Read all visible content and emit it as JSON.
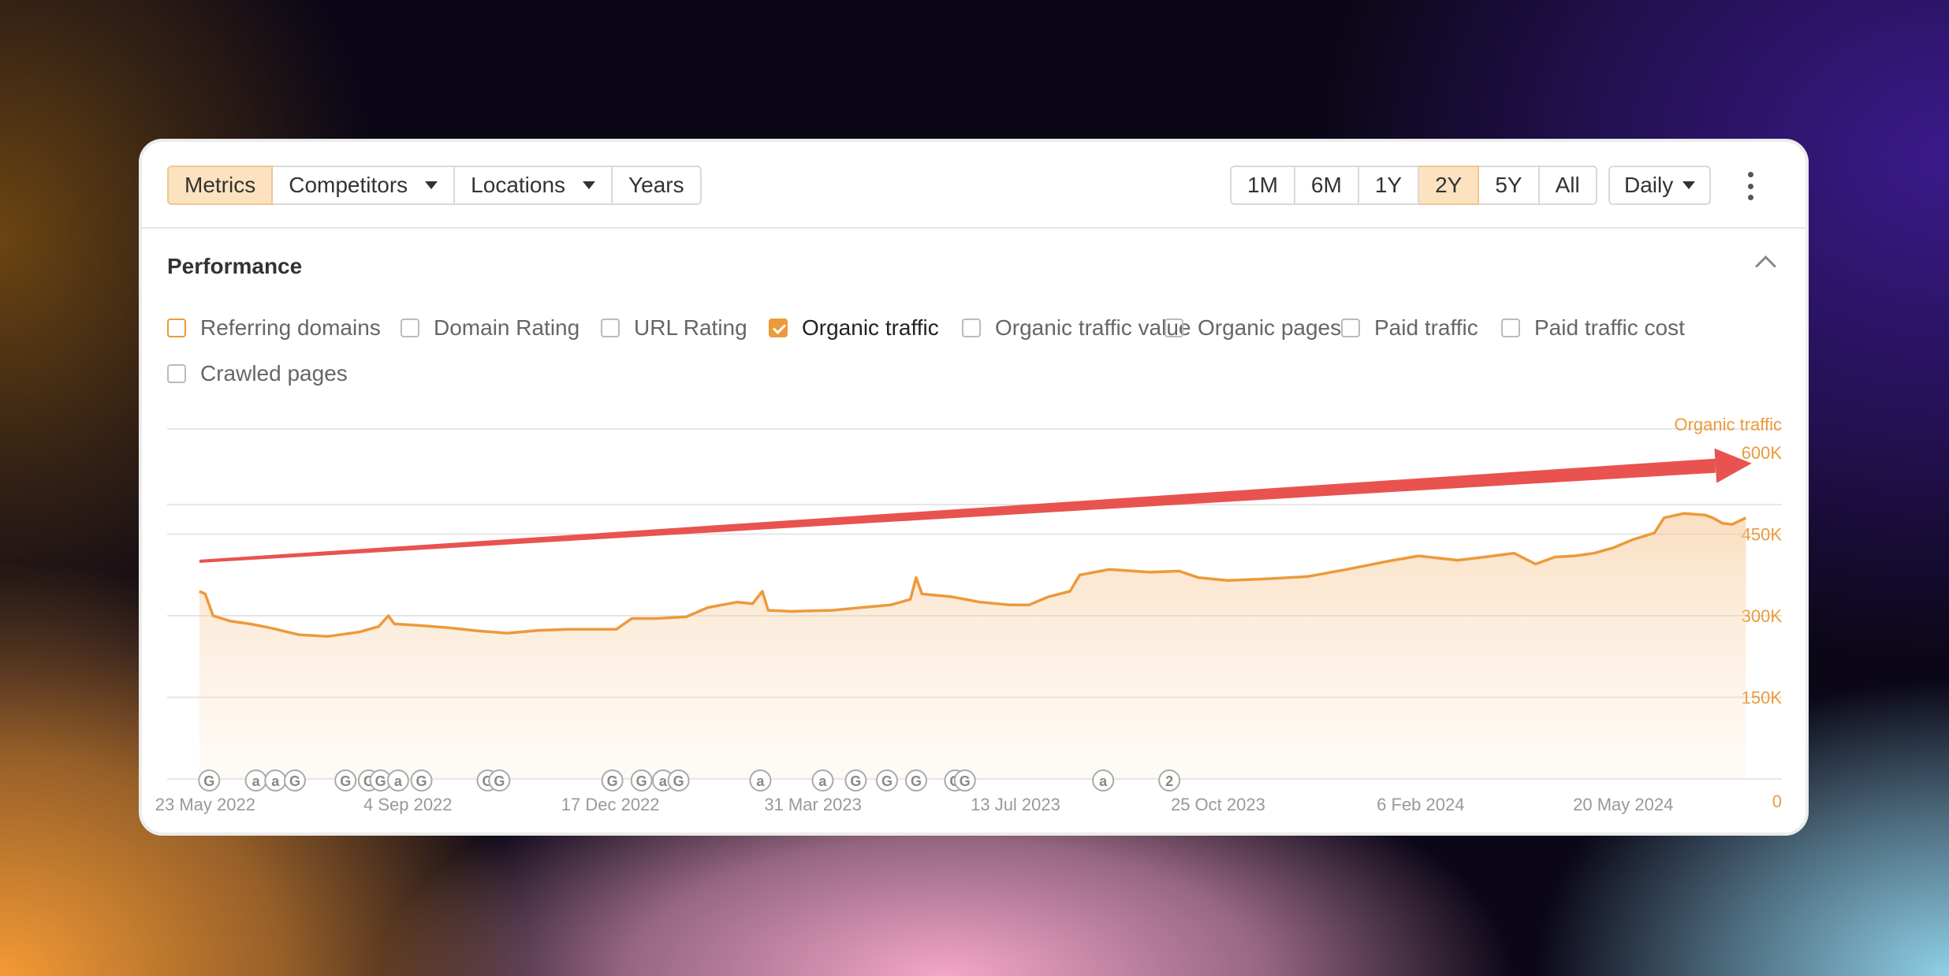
{
  "toolbar": {
    "left_buttons": [
      {
        "label": "Metrics",
        "active": true,
        "dropdown": false
      },
      {
        "label": "Competitors",
        "active": false,
        "dropdown": true
      },
      {
        "label": "Locations",
        "active": false,
        "dropdown": true
      },
      {
        "label": "Years",
        "active": false,
        "dropdown": false
      }
    ],
    "range_buttons": [
      {
        "label": "1M",
        "active": false
      },
      {
        "label": "6M",
        "active": false
      },
      {
        "label": "1Y",
        "active": false
      },
      {
        "label": "2Y",
        "active": true
      },
      {
        "label": "5Y",
        "active": false
      },
      {
        "label": "All",
        "active": false
      }
    ],
    "interval": "Daily",
    "more_icon": "vertical-dots-icon"
  },
  "section": {
    "title": "Performance",
    "collapse_icon": "chevron-up-icon"
  },
  "metrics": [
    {
      "label": "Referring domains",
      "checked": false,
      "accent": true
    },
    {
      "label": "Domain Rating",
      "checked": false
    },
    {
      "label": "URL Rating",
      "checked": false
    },
    {
      "label": "Organic traffic",
      "checked": true
    },
    {
      "label": "Organic traffic value",
      "checked": false
    },
    {
      "label": "Organic pages",
      "checked": false
    },
    {
      "label": "Paid traffic",
      "checked": false
    },
    {
      "label": "Paid traffic cost",
      "checked": false
    },
    {
      "label": "Crawled pages",
      "checked": false
    }
  ],
  "colors": {
    "accent": "#ec9a3b",
    "arrow": "#e8534f",
    "active_button": "#fde2c0"
  },
  "chart_data": {
    "type": "area",
    "series_name": "Organic traffic",
    "y_axis_label": "Organic traffic",
    "ylim": [
      0,
      600000
    ],
    "y_ticks": [
      "600K",
      "450K",
      "300K",
      "150K",
      "0"
    ],
    "x_ticks": [
      "23 May 2022",
      "4 Sep 2022",
      "17 Dec 2022",
      "31 Mar 2023",
      "13 Jul 2023",
      "25 Oct 2023",
      "6 Feb 2024",
      "20 May 2024"
    ],
    "grid": true,
    "points": [
      [
        "2022-05-20",
        345000
      ],
      [
        "2022-05-23",
        340000
      ],
      [
        "2022-05-27",
        300000
      ],
      [
        "2022-06-05",
        290000
      ],
      [
        "2022-06-15",
        285000
      ],
      [
        "2022-06-25",
        278000
      ],
      [
        "2022-07-10",
        265000
      ],
      [
        "2022-07-25",
        262000
      ],
      [
        "2022-08-10",
        270000
      ],
      [
        "2022-08-20",
        280000
      ],
      [
        "2022-08-25",
        300000
      ],
      [
        "2022-08-28",
        285000
      ],
      [
        "2022-09-10",
        282000
      ],
      [
        "2022-09-25",
        278000
      ],
      [
        "2022-10-10",
        272000
      ],
      [
        "2022-10-25",
        268000
      ],
      [
        "2022-11-10",
        273000
      ],
      [
        "2022-11-25",
        275000
      ],
      [
        "2022-12-10",
        275000
      ],
      [
        "2022-12-20",
        275000
      ],
      [
        "2022-12-28",
        295000
      ],
      [
        "2023-01-10",
        295000
      ],
      [
        "2023-01-25",
        298000
      ],
      [
        "2023-02-05",
        315000
      ],
      [
        "2023-02-20",
        325000
      ],
      [
        "2023-02-28",
        322000
      ],
      [
        "2023-03-05",
        345000
      ],
      [
        "2023-03-08",
        310000
      ],
      [
        "2023-03-20",
        308000
      ],
      [
        "2023-04-10",
        310000
      ],
      [
        "2023-04-25",
        315000
      ],
      [
        "2023-05-10",
        320000
      ],
      [
        "2023-05-20",
        330000
      ],
      [
        "2023-05-23",
        370000
      ],
      [
        "2023-05-26",
        340000
      ],
      [
        "2023-06-10",
        335000
      ],
      [
        "2023-06-25",
        325000
      ],
      [
        "2023-07-10",
        320000
      ],
      [
        "2023-07-20",
        320000
      ],
      [
        "2023-07-30",
        335000
      ],
      [
        "2023-08-10",
        345000
      ],
      [
        "2023-08-15",
        375000
      ],
      [
        "2023-08-30",
        385000
      ],
      [
        "2023-09-20",
        380000
      ],
      [
        "2023-10-05",
        382000
      ],
      [
        "2023-10-15",
        370000
      ],
      [
        "2023-10-30",
        365000
      ],
      [
        "2023-11-20",
        368000
      ],
      [
        "2023-12-10",
        372000
      ],
      [
        "2023-12-30",
        385000
      ],
      [
        "2024-01-20",
        400000
      ],
      [
        "2024-02-05",
        410000
      ],
      [
        "2024-02-25",
        402000
      ],
      [
        "2024-03-10",
        408000
      ],
      [
        "2024-03-25",
        415000
      ],
      [
        "2024-04-05",
        395000
      ],
      [
        "2024-04-15",
        408000
      ],
      [
        "2024-04-25",
        410000
      ],
      [
        "2024-05-05",
        415000
      ],
      [
        "2024-05-15",
        425000
      ],
      [
        "2024-05-25",
        440000
      ],
      [
        "2024-06-05",
        452000
      ],
      [
        "2024-06-10",
        480000
      ],
      [
        "2024-06-20",
        488000
      ],
      [
        "2024-07-01",
        485000
      ],
      [
        "2024-07-05",
        480000
      ],
      [
        "2024-07-10",
        470000
      ],
      [
        "2024-07-15",
        468000
      ],
      [
        "2024-07-22",
        480000
      ]
    ],
    "annotation_markers": [
      {
        "date": "2022-05-25",
        "label": "G"
      },
      {
        "date": "2022-06-18",
        "label": "a"
      },
      {
        "date": "2022-06-28",
        "label": "a"
      },
      {
        "date": "2022-07-08",
        "label": "G"
      },
      {
        "date": "2022-08-03",
        "label": "G"
      },
      {
        "date": "2022-08-15",
        "label": "G"
      },
      {
        "date": "2022-08-21",
        "label": "G"
      },
      {
        "date": "2022-08-30",
        "label": "a"
      },
      {
        "date": "2022-09-11",
        "label": "G"
      },
      {
        "date": "2022-10-15",
        "label": "G"
      },
      {
        "date": "2022-10-21",
        "label": "G"
      },
      {
        "date": "2022-12-18",
        "label": "G"
      },
      {
        "date": "2023-01-02",
        "label": "G"
      },
      {
        "date": "2023-01-13",
        "label": "a"
      },
      {
        "date": "2023-01-21",
        "label": "G"
      },
      {
        "date": "2023-03-04",
        "label": "a"
      },
      {
        "date": "2023-04-05",
        "label": "a"
      },
      {
        "date": "2023-04-22",
        "label": "G"
      },
      {
        "date": "2023-05-08",
        "label": "G"
      },
      {
        "date": "2023-05-23",
        "label": "G"
      },
      {
        "date": "2023-06-12",
        "label": "G"
      },
      {
        "date": "2023-06-17",
        "label": "G"
      },
      {
        "date": "2023-08-27",
        "label": "a"
      },
      {
        "date": "2023-09-30",
        "label": "2"
      }
    ],
    "trend_arrow": {
      "from": [
        "2022-05-20",
        400000
      ],
      "to": [
        "2024-07-25",
        580000
      ]
    }
  }
}
